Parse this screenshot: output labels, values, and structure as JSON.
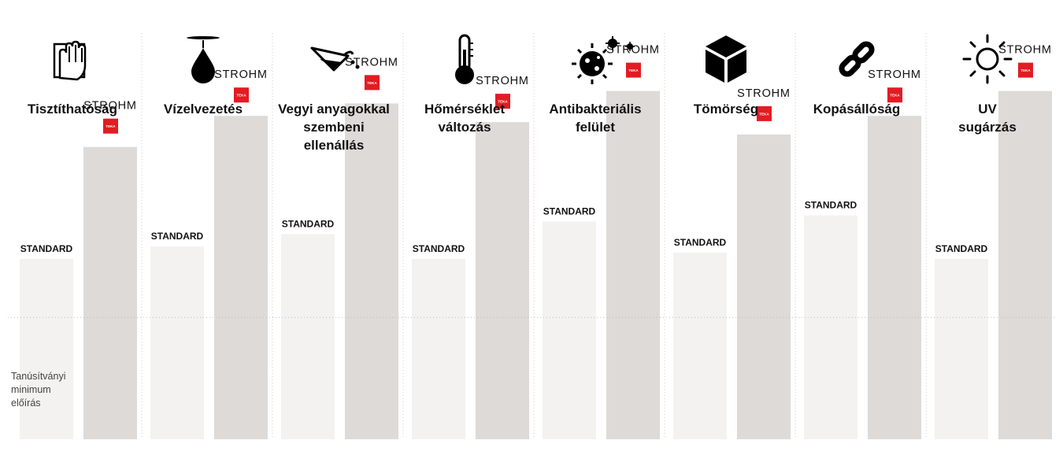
{
  "chart_data": {
    "type": "bar",
    "categories": [
      "Tisztíthatóság",
      "Vízelvezetés",
      "Vegyi anyagokkal szembeni ellenállás",
      "Hőmérséklet változás",
      "Antibakteriális felület",
      "Tömörség",
      "Kopásállóság",
      "UV sugárzás"
    ],
    "category_lines": [
      [
        "Tisztíthatóság"
      ],
      [
        "Vízelvezetés"
      ],
      [
        "Vegyi anyagokkal",
        "szembeni",
        "ellenállás"
      ],
      [
        "Hőmérséklet",
        "változás"
      ],
      [
        "Antibakteriális",
        "felület"
      ],
      [
        "Tömörség"
      ],
      [
        "Kopásállóság"
      ],
      [
        "UV",
        "sugárzás"
      ]
    ],
    "icons": [
      "hand-wipe-icon",
      "water-drop-icon",
      "chemical-beaker-icon",
      "thermometer-icon",
      "bacteria-icon",
      "cube-icon",
      "chain-link-icon",
      "sun-icon"
    ],
    "series": [
      {
        "name": "STANDARD",
        "values": [
          0.29,
          0.31,
          0.33,
          0.29,
          0.35,
          0.3,
          0.36,
          0.29
        ]
      },
      {
        "name": "STROHM",
        "values": [
          0.47,
          0.52,
          0.54,
          0.51,
          0.56,
          0.49,
          0.52,
          0.56
        ]
      }
    ],
    "series_label_standard": "STANDARD",
    "brand_wordmark": "STROHM",
    "brand_badge": "TEKA",
    "baseline_label_lines": [
      "Tanúsítványi",
      "minimum",
      "előírás"
    ],
    "baseline_value": 0.22,
    "ylim": [
      0,
      1
    ],
    "colors": {
      "standard": "#f3f2f1",
      "strohm": "#dedad7",
      "badge": "#e31b23",
      "separator": "#cccccc",
      "baseline": "#bbbbbb",
      "text": "#111111"
    }
  }
}
